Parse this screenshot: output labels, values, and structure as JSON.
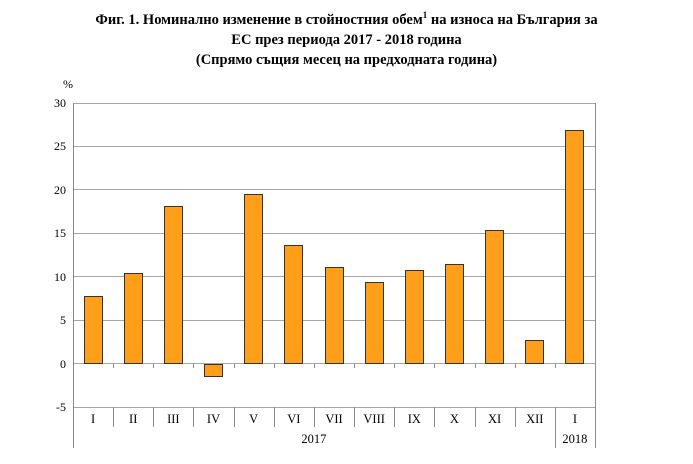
{
  "title": {
    "line1_pre": "Фиг. 1. Номинално изменение в стойностния обем",
    "line1_sup": "1",
    "line1_post": " на износа на България за",
    "line2": "ЕС през периода 2017 - 2018 година",
    "line3": "(Спрямо същия месец на предходната година)"
  },
  "chart_data": {
    "type": "bar",
    "title": "Фиг. 1. Номинално изменение в стойностния обем на износа на България за ЕС през периода 2017 - 2018 година (Спрямо същия месец на предходната година)",
    "ylabel": "%",
    "xlabel": "",
    "categories": [
      "I",
      "II",
      "III",
      "IV",
      "V",
      "VI",
      "VII",
      "VIII",
      "IX",
      "X",
      "XI",
      "XII",
      "I"
    ],
    "values": [
      7.8,
      10.4,
      18.1,
      -1.6,
      19.5,
      13.6,
      11.1,
      9.4,
      10.8,
      11.5,
      15.4,
      2.7,
      26.9
    ],
    "year_groups": [
      {
        "label": "2017",
        "count": 12
      },
      {
        "label": "2018",
        "count": 1
      }
    ],
    "ylim": [
      -5,
      30
    ],
    "yticks": [
      30,
      25,
      20,
      15,
      10,
      5,
      0,
      -5
    ],
    "grid": true,
    "legend": "none",
    "bar_color": "#FF9F19",
    "bar_border_color": "#333333",
    "gridline_color": "#A6A6A6",
    "axis_color": "#8C8C8C"
  }
}
